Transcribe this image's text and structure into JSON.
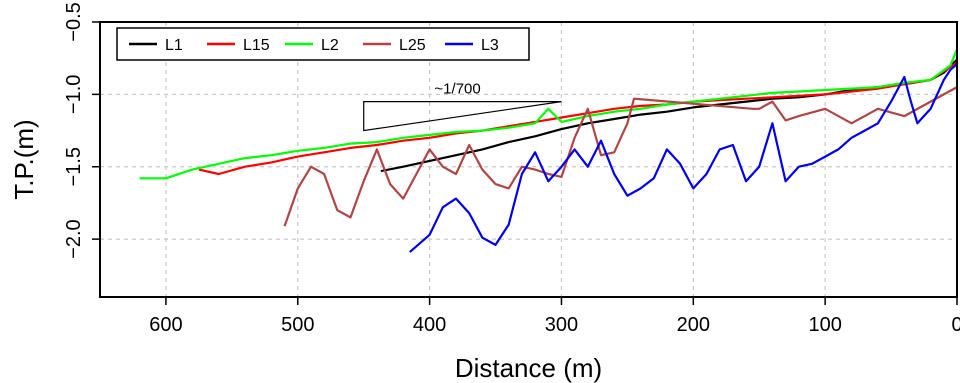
{
  "chart_data": {
    "type": "line",
    "title": "",
    "xlabel": "Distance (m)",
    "ylabel": "T.P.(m)",
    "xlim": [
      650,
      0
    ],
    "ylim": [
      -2.4,
      -0.5
    ],
    "x_reversed": true,
    "grid": true,
    "x_ticks": [
      600,
      500,
      400,
      300,
      200,
      100,
      0
    ],
    "x_tick_labels": [
      "600",
      "500",
      "400",
      "300",
      "200",
      "100",
      "0"
    ],
    "y_ticks": [
      -0.5,
      -1.0,
      -1.5,
      -2.0
    ],
    "y_tick_labels": [
      "−0.5",
      "−1.0",
      "−1.5",
      "−2.0"
    ],
    "legend_position": "top-left",
    "annotation": {
      "text": "~1/700",
      "triangle": [
        [
          450,
          -1.05
        ],
        [
          300,
          -1.05
        ],
        [
          450,
          -1.25
        ]
      ]
    },
    "series": [
      {
        "name": "L1",
        "color": "#000000",
        "x": [
          437,
          420,
          400,
          380,
          360,
          340,
          320,
          300,
          280,
          260,
          240,
          220,
          200,
          180,
          160,
          140,
          120,
          100,
          80,
          60,
          40,
          20,
          10,
          0
        ],
        "y": [
          -1.53,
          -1.5,
          -1.46,
          -1.42,
          -1.38,
          -1.33,
          -1.29,
          -1.24,
          -1.2,
          -1.17,
          -1.14,
          -1.12,
          -1.09,
          -1.07,
          -1.05,
          -1.03,
          -1.02,
          -1.0,
          -0.97,
          -0.95,
          -0.93,
          -0.9,
          -0.85,
          -0.76
        ]
      },
      {
        "name": "L15",
        "color": "#ff0000",
        "x": [
          575,
          560,
          540,
          520,
          500,
          480,
          460,
          440,
          420,
          400,
          380,
          360,
          340,
          320,
          300,
          280,
          260,
          240,
          220,
          200,
          180,
          160,
          140,
          120,
          100,
          80,
          60,
          40,
          20,
          0
        ],
        "y": [
          -1.52,
          -1.55,
          -1.5,
          -1.47,
          -1.43,
          -1.4,
          -1.37,
          -1.35,
          -1.32,
          -1.3,
          -1.27,
          -1.25,
          -1.22,
          -1.19,
          -1.16,
          -1.13,
          -1.1,
          -1.08,
          -1.07,
          -1.05,
          -1.04,
          -1.03,
          -1.02,
          -1.01,
          -1.0,
          -0.98,
          -0.96,
          -0.93,
          -0.9,
          -0.78
        ]
      },
      {
        "name": "L2",
        "color": "#00ff00",
        "x": [
          620,
          600,
          580,
          560,
          540,
          520,
          500,
          480,
          460,
          440,
          420,
          400,
          380,
          360,
          340,
          320,
          310,
          300,
          280,
          260,
          240,
          220,
          200,
          180,
          160,
          140,
          120,
          100,
          80,
          60,
          40,
          20,
          5,
          0
        ],
        "y": [
          -1.58,
          -1.58,
          -1.52,
          -1.48,
          -1.44,
          -1.42,
          -1.39,
          -1.37,
          -1.34,
          -1.33,
          -1.3,
          -1.28,
          -1.26,
          -1.25,
          -1.23,
          -1.2,
          -1.1,
          -1.19,
          -1.15,
          -1.12,
          -1.1,
          -1.07,
          -1.05,
          -1.03,
          -1.01,
          -0.99,
          -0.98,
          -0.97,
          -0.96,
          -0.95,
          -0.92,
          -0.9,
          -0.8,
          -0.69
        ]
      },
      {
        "name": "L25",
        "color": "#b04545",
        "x": [
          510,
          500,
          490,
          480,
          470,
          460,
          450,
          440,
          430,
          420,
          410,
          400,
          390,
          380,
          370,
          360,
          350,
          340,
          330,
          320,
          310,
          300,
          290,
          280,
          270,
          260,
          250,
          245,
          155,
          150,
          140,
          130,
          120,
          100,
          80,
          60,
          40,
          20,
          0
        ],
        "y": [
          -1.91,
          -1.65,
          -1.5,
          -1.55,
          -1.8,
          -1.85,
          -1.6,
          -1.38,
          -1.62,
          -1.72,
          -1.55,
          -1.38,
          -1.5,
          -1.55,
          -1.35,
          -1.52,
          -1.62,
          -1.65,
          -1.5,
          -1.52,
          -1.55,
          -1.57,
          -1.3,
          -1.1,
          -1.42,
          -1.4,
          -1.2,
          -1.03,
          -1.1,
          -1.1,
          -1.05,
          -1.18,
          -1.15,
          -1.1,
          -1.2,
          -1.1,
          -1.15,
          -1.05,
          -0.95
        ]
      },
      {
        "name": "L3",
        "color": "#0000ee",
        "x": [
          415,
          400,
          390,
          380,
          370,
          360,
          350,
          340,
          330,
          320,
          310,
          300,
          290,
          280,
          270,
          260,
          250,
          240,
          230,
          220,
          210,
          200,
          190,
          180,
          170,
          160,
          150,
          140,
          130,
          120,
          110,
          100,
          90,
          80,
          70,
          60,
          50,
          40,
          35,
          30,
          20,
          10,
          5,
          0
        ],
        "y": [
          -2.09,
          -1.97,
          -1.78,
          -1.72,
          -1.82,
          -1.99,
          -2.04,
          -1.9,
          -1.55,
          -1.4,
          -1.6,
          -1.5,
          -1.38,
          -1.5,
          -1.32,
          -1.55,
          -1.7,
          -1.65,
          -1.58,
          -1.38,
          -1.48,
          -1.65,
          -1.55,
          -1.38,
          -1.35,
          -1.6,
          -1.5,
          -1.2,
          -1.6,
          -1.5,
          -1.48,
          -1.43,
          -1.38,
          -1.3,
          -1.25,
          -1.2,
          -1.05,
          -0.88,
          -1.05,
          -1.2,
          -1.1,
          -0.9,
          -0.83,
          -0.79
        ]
      }
    ]
  }
}
